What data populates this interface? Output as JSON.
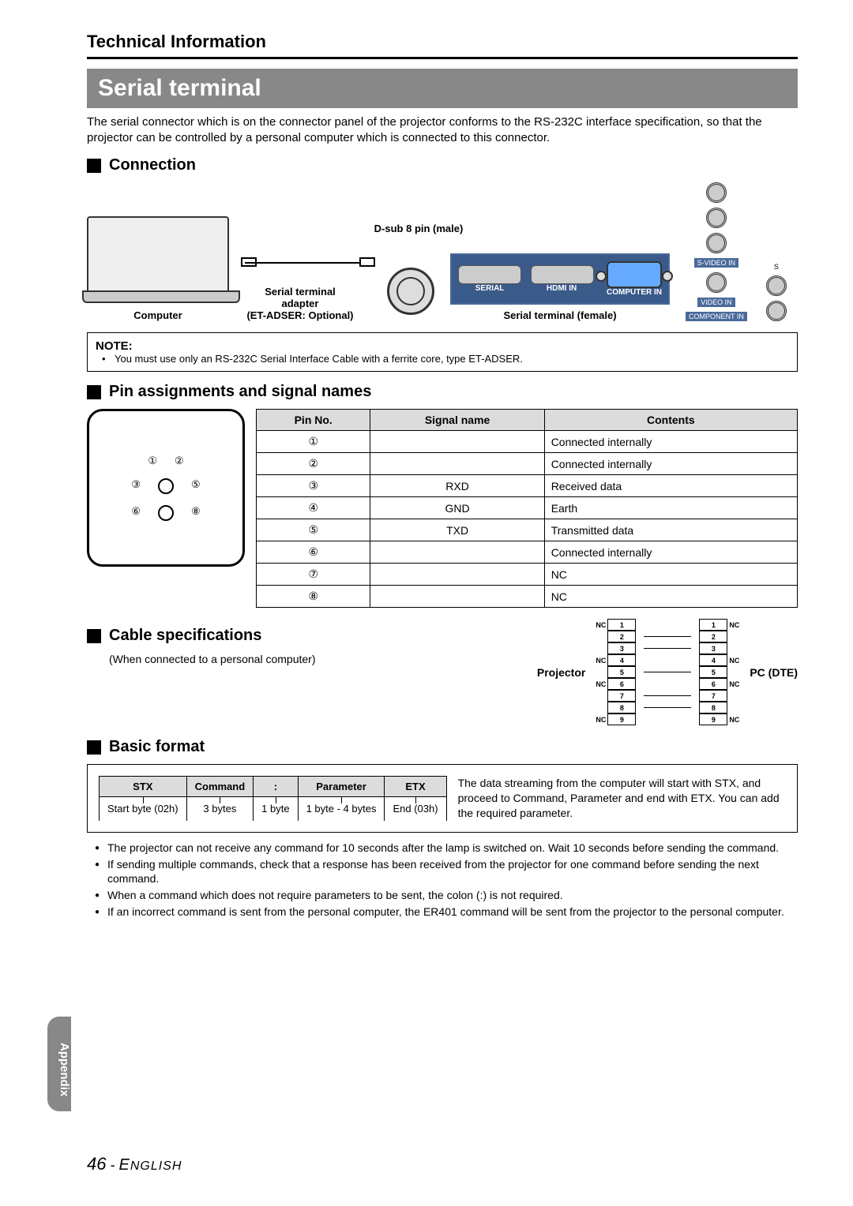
{
  "page": {
    "header": "Technical Information",
    "section_title": "Serial terminal",
    "intro": "The serial connector which is on the connector panel of the projector conforms to the RS-232C interface specification, so that the projector can be controlled by a personal computer which is connected to this connector.",
    "side_tab": "Appendix",
    "page_number": "46",
    "page_lang": "ENGLISH"
  },
  "connection": {
    "heading": "Connection",
    "dsub_label": "D-sub 8 pin (male)",
    "computer_label": "Computer",
    "adapter_label_1": "Serial terminal adapter",
    "adapter_label_2": "(ET-ADSER: Optional)",
    "serial_female": "Serial terminal (female)",
    "panel_labels": {
      "serial": "SERIAL",
      "hdmi": "HDMI IN",
      "computer": "COMPUTER IN",
      "svideo": "S-VIDEO IN",
      "video": "VIDEO IN",
      "component": "COMPONENT IN"
    }
  },
  "note": {
    "title": "NOTE:",
    "body": "You must use only an RS-232C Serial Interface Cable with a ferrite core, type ET-ADSER."
  },
  "pins": {
    "heading": "Pin assignments and signal names",
    "cols": {
      "pin": "Pin No.",
      "signal": "Signal name",
      "contents": "Contents"
    },
    "rows": [
      {
        "pin": "①",
        "signal": "",
        "contents": "Connected internally"
      },
      {
        "pin": "②",
        "signal": "",
        "contents": "Connected internally"
      },
      {
        "pin": "③",
        "signal": "RXD",
        "contents": "Received data"
      },
      {
        "pin": "④",
        "signal": "GND",
        "contents": "Earth"
      },
      {
        "pin": "⑤",
        "signal": "TXD",
        "contents": "Transmitted data"
      },
      {
        "pin": "⑥",
        "signal": "",
        "contents": "Connected internally"
      },
      {
        "pin": "⑦",
        "signal": "",
        "contents": "NC"
      },
      {
        "pin": "⑧",
        "signal": "",
        "contents": "NC"
      }
    ]
  },
  "cable_spec": {
    "heading": "Cable specifications",
    "sub": "(When connected to a personal computer)",
    "left_label": "Projector",
    "right_label": "PC (DTE)",
    "nc": "NC",
    "pins": [
      "1",
      "2",
      "3",
      "4",
      "5",
      "6",
      "7",
      "8",
      "9"
    ],
    "nc_left": [
      true,
      false,
      false,
      true,
      false,
      true,
      false,
      false,
      true
    ],
    "nc_right": [
      true,
      false,
      false,
      true,
      false,
      true,
      false,
      false,
      true
    ],
    "connected": [
      false,
      true,
      true,
      false,
      true,
      false,
      true,
      true,
      false
    ]
  },
  "basic": {
    "heading": "Basic format",
    "cols": {
      "stx": "STX",
      "cmd": "Command",
      "colon": ":",
      "param": "Parameter",
      "etx": "ETX"
    },
    "vals": {
      "stx": "Start byte (02h)",
      "cmd": "3 bytes",
      "colon": "1 byte",
      "param": "1 byte - 4 bytes",
      "etx": "End (03h)"
    },
    "desc": "The data streaming from the computer will start with STX, and proceed to Command, Parameter and end with ETX. You can add the required parameter.",
    "bullets": [
      "The projector can not receive any command for 10 seconds after the lamp is switched on. Wait 10 seconds before sending the command.",
      "If sending multiple commands, check that a response has been received from the projector for one command before sending the next command.",
      "When a command which does not require parameters to be sent, the colon (:) is not required.",
      "If an incorrect command is sent from the personal computer, the ER401 command will be sent from the projector to the personal computer."
    ]
  }
}
